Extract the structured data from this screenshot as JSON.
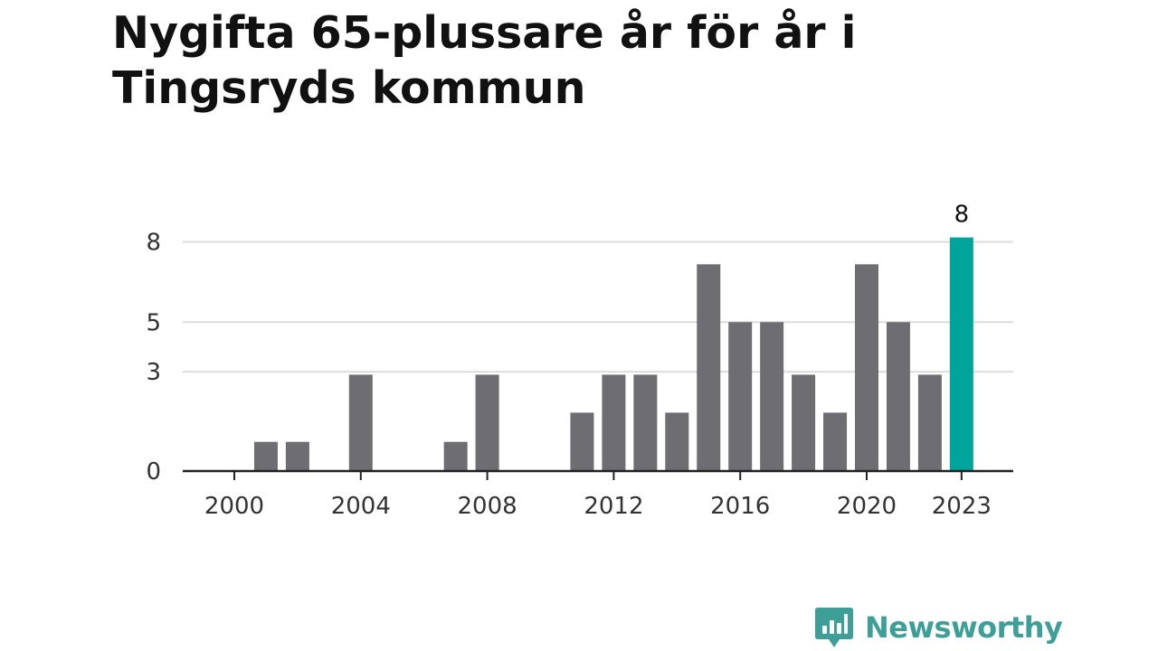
{
  "title": "Nygifta 65-plussare år för år i Tingsryds kommun",
  "brand": {
    "name": "Newsworthy",
    "icon": "newsworthy-logo-icon"
  },
  "colors": {
    "bar": "#6e6d72",
    "highlight": "#00a49a",
    "grid": "#dcdcdc",
    "axis": "#222222",
    "brand": "#3e9f98"
  },
  "chart_data": {
    "type": "bar",
    "title": "Nygifta 65-plussare år för år i Tingsryds kommun",
    "xlabel": "",
    "ylabel": "",
    "categories": [
      "2000",
      "2001",
      "2002",
      "2003",
      "2004",
      "2005",
      "2006",
      "2007",
      "2008",
      "2009",
      "2010",
      "2011",
      "2012",
      "2013",
      "2014",
      "2015",
      "2016",
      "2017",
      "2018",
      "2019",
      "2020",
      "2021",
      "2022",
      "2023"
    ],
    "values": [
      0,
      1,
      1,
      0,
      3,
      0,
      0,
      1,
      3,
      0,
      0,
      2,
      3,
      3,
      2,
      7,
      5,
      5,
      3,
      2,
      7,
      5,
      3,
      8
    ],
    "ylim": [
      0,
      8
    ],
    "yticks": [
      "0",
      "3",
      "5",
      "8"
    ],
    "xticks": [
      "2000",
      "2004",
      "2008",
      "2012",
      "2016",
      "2020",
      "2023"
    ],
    "highlight": {
      "category": "2023",
      "label": "8"
    },
    "grid": true,
    "legend": "none"
  }
}
